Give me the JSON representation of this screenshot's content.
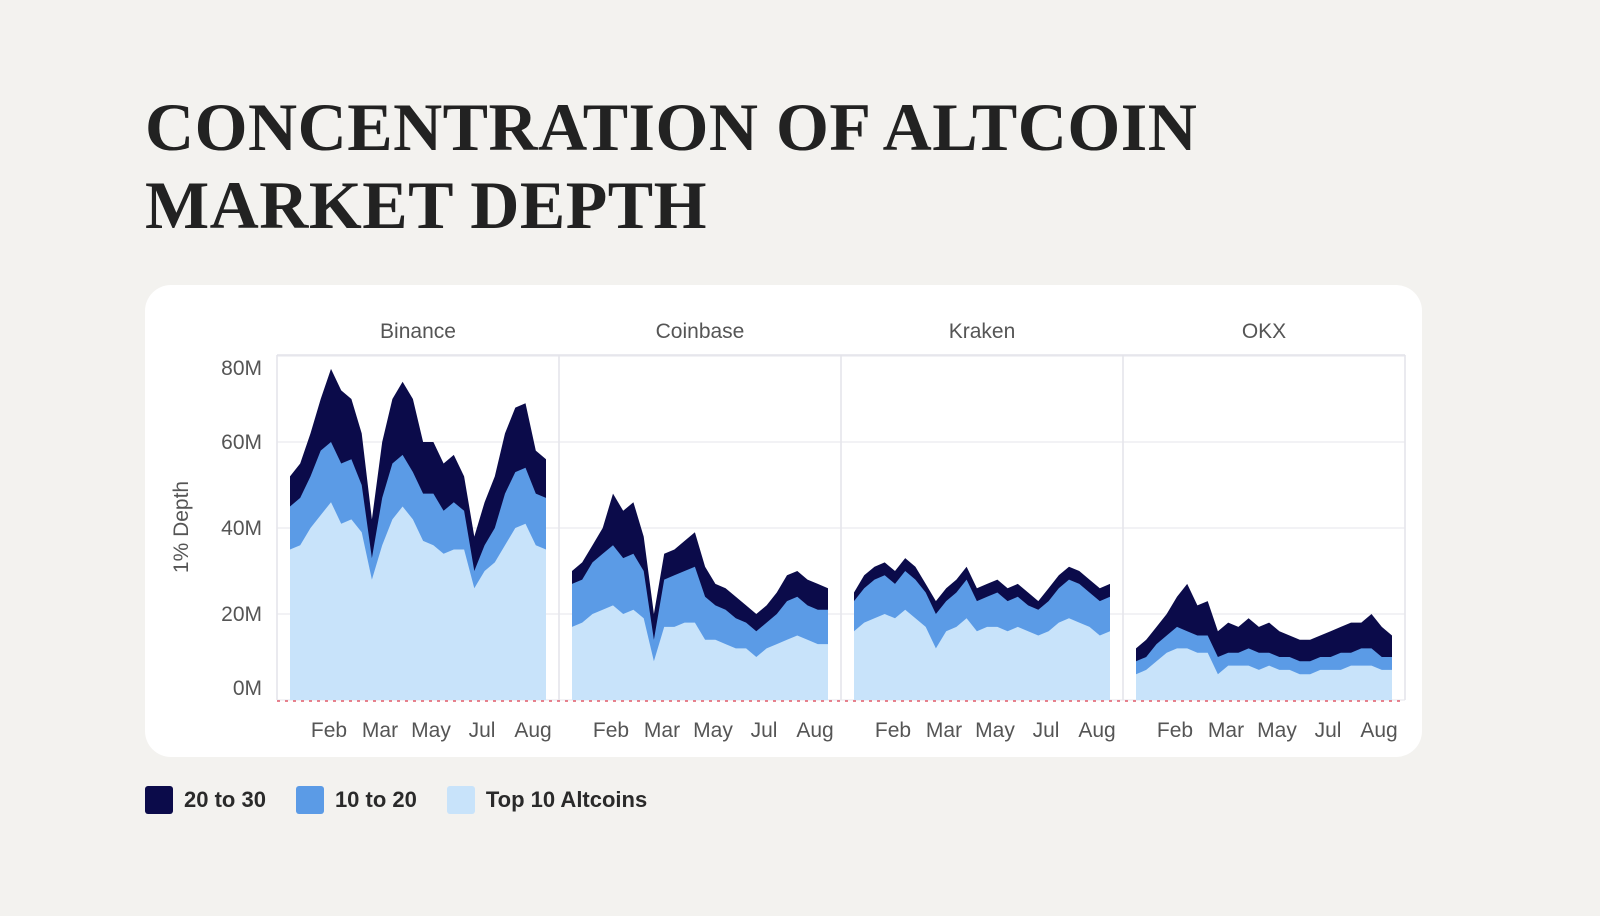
{
  "title_lines": [
    "CONCENTRATION OF ALTCOIN",
    "MARKET DEPTH"
  ],
  "chart_data": {
    "type": "area",
    "stacked": true,
    "ylabel": "1% Depth",
    "ylim": [
      0,
      80
    ],
    "yticks": [
      0,
      20,
      40,
      60,
      80
    ],
    "ytick_labels": [
      "0M",
      "20M",
      "40M",
      "60M",
      "80M"
    ],
    "xtick_labels": [
      "Feb",
      "Mar",
      "May",
      "Jul",
      "Aug"
    ],
    "grid": true,
    "legend_position": "bottom-left",
    "colors": {
      "20 to 30": "#0b0b4a",
      "10 to 20": "#5b9be6",
      "Top 10 Altcoins": "#c8e3fa"
    },
    "legend": [
      "20 to 30",
      "10 to 20",
      "Top 10 Altcoins"
    ],
    "panels": [
      {
        "name": "Binance",
        "series": [
          {
            "name": "Top 10 Altcoins",
            "values": [
              35,
              36,
              40,
              43,
              46,
              41,
              42,
              39,
              28,
              36,
              42,
              45,
              42,
              37,
              36,
              34,
              35,
              35,
              26,
              30,
              32,
              36,
              40,
              41,
              36,
              35
            ]
          },
          {
            "name": "10 to 20",
            "values": [
              10,
              11,
              12,
              15,
              14,
              14,
              14,
              11,
              5,
              11,
              13,
              12,
              11,
              11,
              12,
              10,
              11,
              9,
              4,
              6,
              8,
              12,
              13,
              13,
              12,
              12
            ]
          },
          {
            "name": "20 to 30",
            "values": [
              7,
              8,
              10,
              12,
              17,
              17,
              14,
              12,
              9,
              13,
              15,
              17,
              17,
              12,
              12,
              11,
              11,
              8,
              8,
              10,
              12,
              14,
              15,
              15,
              10,
              9
            ]
          }
        ]
      },
      {
        "name": "Coinbase",
        "series": [
          {
            "name": "Top 10 Altcoins",
            "values": [
              17,
              18,
              20,
              21,
              22,
              20,
              21,
              19,
              9,
              17,
              17,
              18,
              18,
              14,
              14,
              13,
              12,
              12,
              10,
              12,
              13,
              14,
              15,
              14,
              13,
              13
            ]
          },
          {
            "name": "10 to 20",
            "values": [
              10,
              10,
              12,
              13,
              14,
              13,
              13,
              11,
              5,
              11,
              12,
              12,
              13,
              10,
              8,
              8,
              7,
              6,
              6,
              6,
              7,
              9,
              9,
              8,
              8,
              8
            ]
          },
          {
            "name": "20 to 30",
            "values": [
              3,
              4,
              4,
              6,
              12,
              11,
              12,
              8,
              6,
              6,
              6,
              7,
              8,
              7,
              5,
              5,
              5,
              4,
              4,
              4,
              5,
              6,
              6,
              6,
              6,
              5
            ]
          }
        ]
      },
      {
        "name": "Kraken",
        "series": [
          {
            "name": "Top 10 Altcoins",
            "values": [
              16,
              18,
              19,
              20,
              19,
              21,
              19,
              17,
              12,
              16,
              17,
              19,
              16,
              17,
              17,
              16,
              17,
              16,
              15,
              16,
              18,
              19,
              18,
              17,
              15,
              16
            ]
          },
          {
            "name": "10 to 20",
            "values": [
              7,
              8,
              9,
              9,
              8,
              9,
              9,
              8,
              8,
              7,
              8,
              9,
              7,
              7,
              8,
              7,
              7,
              6,
              6,
              7,
              8,
              9,
              9,
              8,
              8,
              8
            ]
          },
          {
            "name": "20 to 30",
            "values": [
              2,
              3,
              3,
              3,
              3,
              3,
              3,
              2,
              3,
              3,
              3,
              3,
              3,
              3,
              3,
              3,
              3,
              3,
              2,
              3,
              3,
              3,
              3,
              3,
              3,
              3
            ]
          }
        ]
      },
      {
        "name": "OKX",
        "series": [
          {
            "name": "Top 10 Altcoins",
            "values": [
              6,
              7,
              9,
              11,
              12,
              12,
              11,
              11,
              6,
              8,
              8,
              8,
              7,
              8,
              7,
              7,
              6,
              6,
              7,
              7,
              7,
              8,
              8,
              8,
              7,
              7
            ]
          },
          {
            "name": "10 to 20",
            "values": [
              3,
              3,
              4,
              4,
              5,
              4,
              4,
              4,
              4,
              3,
              3,
              4,
              4,
              3,
              3,
              3,
              3,
              3,
              3,
              3,
              4,
              3,
              4,
              4,
              3,
              3
            ]
          },
          {
            "name": "20 to 30",
            "values": [
              3,
              4,
              4,
              5,
              7,
              11,
              7,
              8,
              6,
              7,
              6,
              7,
              6,
              7,
              6,
              5,
              5,
              5,
              5,
              6,
              6,
              7,
              6,
              8,
              7,
              5
            ]
          }
        ]
      }
    ]
  }
}
